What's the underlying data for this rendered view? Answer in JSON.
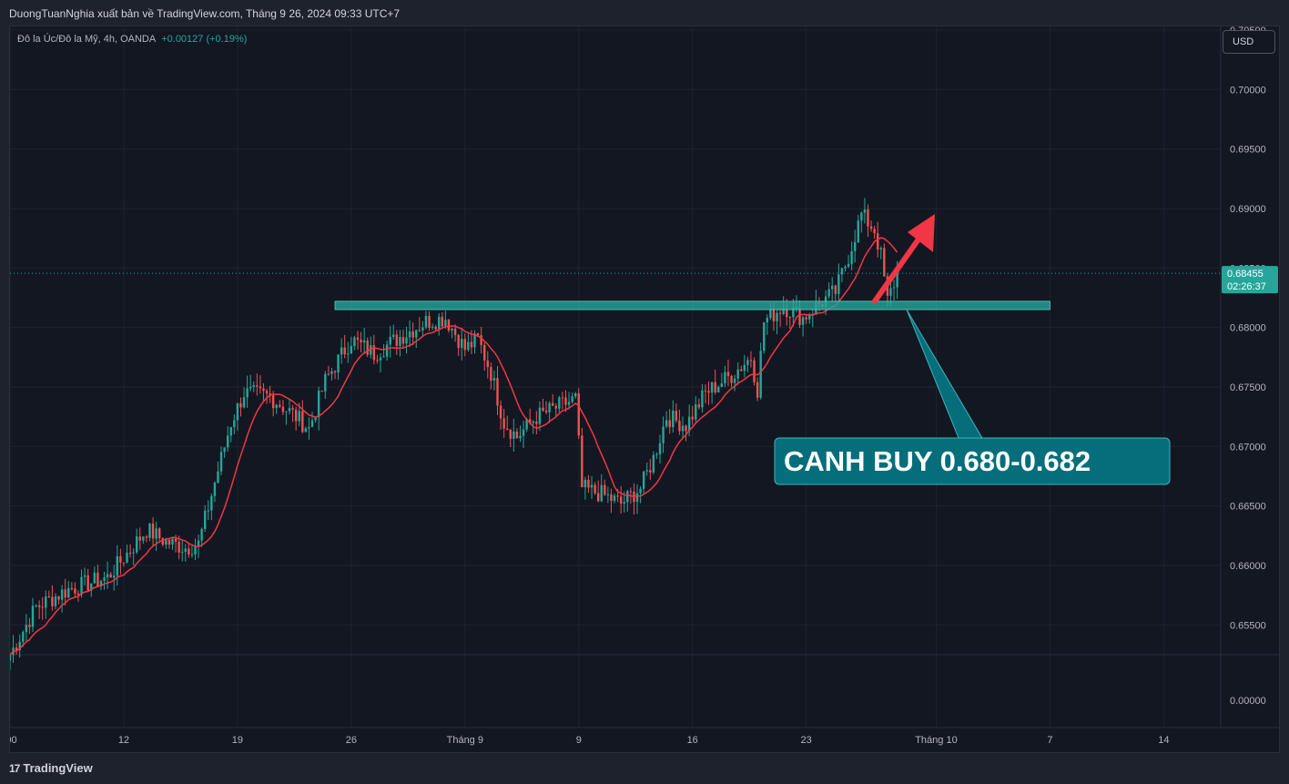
{
  "header": {
    "publisher": "DuongTuanNghia xuất bản về TradingView.com, Tháng 9 26, 2024 09:33 UTC+7"
  },
  "legend": {
    "symbol": "Đô la Úc/Đô la Mỹ, 4h, OANDA",
    "change": "+0.00127 (+0.19%)"
  },
  "currency_button": "USD",
  "footer": {
    "logo_mark": "17",
    "logo_text": "TradingView"
  },
  "colors": {
    "bull": "#26a69a",
    "bear": "#ef5350",
    "ma": "#f23645",
    "zone": "#26a69a",
    "callout_bg": "#056e7a",
    "arrow": "#f23645"
  },
  "chart_data": {
    "type": "candlestick",
    "ylim": [
      0.6525,
      0.7053
    ],
    "y_ticks": [
      "0.70500",
      "0.70000",
      "0.69500",
      "0.69000",
      "0.68500",
      "0.68000",
      "0.67500",
      "0.67000",
      "0.66500",
      "0.66000",
      "0.65500"
    ],
    "lower_pane_tick": "0.00000",
    "x_ticks": [
      {
        "label": ":00",
        "bar": 0
      },
      {
        "label": "12",
        "bar": 35
      },
      {
        "label": "19",
        "bar": 70
      },
      {
        "label": "26",
        "bar": 105
      },
      {
        "label": "Tháng 9",
        "bar": 140
      },
      {
        "label": "9",
        "bar": 175
      },
      {
        "label": "16",
        "bar": 210
      },
      {
        "label": "23",
        "bar": 245
      },
      {
        "label": "Tháng 10",
        "bar": 285
      },
      {
        "label": "7",
        "bar": 320
      },
      {
        "label": "14",
        "bar": 355
      }
    ],
    "last_price": "0.68455",
    "countdown": "02:26:37",
    "anchors": [
      [
        0,
        0.6525
      ],
      [
        8,
        0.6565
      ],
      [
        18,
        0.658
      ],
      [
        30,
        0.659
      ],
      [
        42,
        0.663
      ],
      [
        48,
        0.662
      ],
      [
        54,
        0.6615
      ],
      [
        58,
        0.6618
      ],
      [
        64,
        0.668
      ],
      [
        68,
        0.672
      ],
      [
        72,
        0.6745
      ],
      [
        80,
        0.6742
      ],
      [
        88,
        0.6725
      ],
      [
        92,
        0.6715
      ],
      [
        97,
        0.6755
      ],
      [
        105,
        0.679
      ],
      [
        112,
        0.6778
      ],
      [
        120,
        0.6792
      ],
      [
        128,
        0.6805
      ],
      [
        134,
        0.6808
      ],
      [
        140,
        0.6782
      ],
      [
        144,
        0.679
      ],
      [
        148,
        0.6762
      ],
      [
        152,
        0.672
      ],
      [
        156,
        0.6708
      ],
      [
        162,
        0.6725
      ],
      [
        170,
        0.6735
      ],
      [
        174,
        0.674
      ],
      [
        176,
        0.6665
      ],
      [
        182,
        0.666
      ],
      [
        188,
        0.6652
      ],
      [
        194,
        0.6665
      ],
      [
        198,
        0.669
      ],
      [
        202,
        0.6725
      ],
      [
        208,
        0.6718
      ],
      [
        214,
        0.6745
      ],
      [
        222,
        0.676
      ],
      [
        228,
        0.6775
      ],
      [
        230,
        0.6748
      ],
      [
        232,
        0.6805
      ],
      [
        238,
        0.6818
      ],
      [
        244,
        0.6808
      ],
      [
        250,
        0.6822
      ],
      [
        254,
        0.683
      ],
      [
        258,
        0.686
      ],
      [
        262,
        0.6895
      ],
      [
        266,
        0.6882
      ],
      [
        268,
        0.686
      ],
      [
        270,
        0.6822
      ],
      [
        273,
        0.6845
      ]
    ],
    "ma_line": "red moving average following price",
    "support_zone": {
      "low": 0.6815,
      "high": 0.6822,
      "from_bar": 100,
      "to_bar": 320
    },
    "annotation": "CANH BUY 0.680-0.682"
  }
}
